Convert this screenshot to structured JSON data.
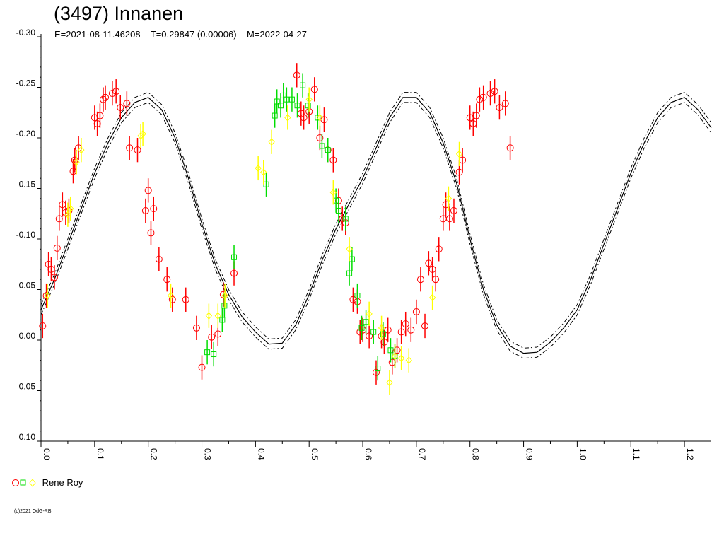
{
  "title": "(3497) Innanen",
  "subtitle": "E=2021-08-11.46208    T=0.29847 (0.00006)    M=2022-04-27",
  "copyright": "(c)2021 OdG-RB",
  "legend": {
    "label": "Rene Roy",
    "colors": [
      "#ff0000",
      "#00dd00",
      "#ffff00"
    ]
  },
  "chart_data": {
    "type": "scatter",
    "title": "(3497) Innanen",
    "xlabel": "",
    "ylabel": "",
    "xlim": [
      0.0,
      1.25
    ],
    "ylim": [
      -0.3,
      0.1
    ],
    "y_inverted": true,
    "x_ticks": [
      "0.0",
      "0.1",
      "0.2",
      "0.3",
      "0.4",
      "0.5",
      "0.6",
      "0.7",
      "0.8",
      "0.9",
      "1.0",
      "1.1",
      "1.2"
    ],
    "y_ticks": [
      "-0.30",
      "-0.25",
      "-0.20",
      "-0.15",
      "-0.10",
      "-0.05",
      "0.00",
      "0.05",
      "0.10"
    ],
    "fit_curve": {
      "x": [
        0.0,
        0.025,
        0.05,
        0.075,
        0.1,
        0.125,
        0.15,
        0.175,
        0.2,
        0.225,
        0.25,
        0.275,
        0.3,
        0.325,
        0.35,
        0.375,
        0.4,
        0.425,
        0.45,
        0.475,
        0.5,
        0.525,
        0.55,
        0.575,
        0.6,
        0.625,
        0.65,
        0.675,
        0.7,
        0.725,
        0.75,
        0.775,
        0.8,
        0.825,
        0.85,
        0.875,
        0.9,
        0.925,
        0.95,
        0.975,
        1.0,
        1.025,
        1.05,
        1.075,
        1.1,
        1.125,
        1.15,
        1.175,
        1.2,
        1.225,
        1.25
      ],
      "y": [
        -0.03,
        -0.06,
        -0.095,
        -0.13,
        -0.165,
        -0.195,
        -0.22,
        -0.235,
        -0.24,
        -0.228,
        -0.2,
        -0.16,
        -0.115,
        -0.075,
        -0.045,
        -0.023,
        -0.008,
        0.004,
        0.003,
        -0.015,
        -0.045,
        -0.08,
        -0.11,
        -0.135,
        -0.16,
        -0.19,
        -0.22,
        -0.24,
        -0.24,
        -0.225,
        -0.195,
        -0.155,
        -0.1,
        -0.05,
        -0.015,
        0.006,
        0.013,
        0.012,
        0.002,
        -0.012,
        -0.03,
        -0.06,
        -0.095,
        -0.13,
        -0.165,
        -0.195,
        -0.22,
        -0.235,
        -0.24,
        -0.228,
        -0.21
      ],
      "band": 0.005
    },
    "series": [
      {
        "marker": "circle",
        "color": "#ff0000",
        "points": [
          [
            0.003,
            -0.014
          ],
          [
            0.01,
            -0.044
          ],
          [
            0.014,
            -0.075
          ],
          [
            0.019,
            -0.07
          ],
          [
            0.025,
            -0.062
          ],
          [
            0.03,
            -0.091
          ],
          [
            0.034,
            -0.12
          ],
          [
            0.04,
            -0.134
          ],
          [
            0.046,
            -0.126
          ],
          [
            0.052,
            -0.128
          ],
          [
            0.06,
            -0.167
          ],
          [
            0.063,
            -0.178
          ],
          [
            0.07,
            -0.19
          ],
          [
            0.1,
            -0.22
          ],
          [
            0.105,
            -0.214
          ],
          [
            0.11,
            -0.222
          ],
          [
            0.116,
            -0.238
          ],
          [
            0.12,
            -0.24
          ],
          [
            0.133,
            -0.244
          ],
          [
            0.14,
            -0.246
          ],
          [
            0.148,
            -0.23
          ],
          [
            0.16,
            -0.234
          ],
          [
            0.165,
            -0.19
          ],
          [
            0.18,
            -0.188
          ],
          [
            0.195,
            -0.128
          ],
          [
            0.2,
            -0.148
          ],
          [
            0.205,
            -0.106
          ],
          [
            0.21,
            -0.13
          ],
          [
            0.22,
            -0.08
          ],
          [
            0.235,
            -0.06
          ],
          [
            0.245,
            -0.04
          ],
          [
            0.27,
            -0.04
          ],
          [
            0.29,
            -0.012
          ],
          [
            0.3,
            0.027
          ],
          [
            0.318,
            -0.003
          ],
          [
            0.33,
            -0.006
          ],
          [
            0.34,
            -0.045
          ],
          [
            0.36,
            -0.066
          ],
          [
            0.477,
            -0.262
          ],
          [
            0.485,
            -0.224
          ],
          [
            0.49,
            -0.22
          ],
          [
            0.5,
            -0.226
          ],
          [
            0.51,
            -0.248
          ],
          [
            0.52,
            -0.2
          ],
          [
            0.528,
            -0.218
          ],
          [
            0.535,
            -0.188
          ],
          [
            0.545,
            -0.178
          ],
          [
            0.555,
            -0.138
          ],
          [
            0.562,
            -0.12
          ],
          [
            0.568,
            -0.116
          ],
          [
            0.582,
            -0.04
          ],
          [
            0.59,
            -0.038
          ],
          [
            0.595,
            -0.008
          ],
          [
            0.6,
            -0.01
          ],
          [
            0.612,
            -0.004
          ],
          [
            0.625,
            0.032
          ],
          [
            0.635,
            -0.004
          ],
          [
            0.64,
            0.002
          ],
          [
            0.647,
            -0.01
          ],
          [
            0.655,
            0.022
          ],
          [
            0.664,
            0.01
          ],
          [
            0.672,
            -0.008
          ],
          [
            0.68,
            -0.016
          ],
          [
            0.69,
            -0.01
          ],
          [
            0.7,
            -0.028
          ],
          [
            0.708,
            -0.06
          ],
          [
            0.716,
            -0.014
          ],
          [
            0.723,
            -0.076
          ],
          [
            0.73,
            -0.07
          ],
          [
            0.736,
            -0.06
          ],
          [
            0.742,
            -0.09
          ],
          [
            0.75,
            -0.12
          ],
          [
            0.755,
            -0.134
          ],
          [
            0.762,
            -0.12
          ],
          [
            0.77,
            -0.128
          ],
          [
            0.78,
            -0.166
          ],
          [
            0.786,
            -0.178
          ],
          [
            0.8,
            -0.22
          ],
          [
            0.806,
            -0.214
          ],
          [
            0.812,
            -0.222
          ],
          [
            0.818,
            -0.238
          ],
          [
            0.825,
            -0.24
          ],
          [
            0.838,
            -0.244
          ],
          [
            0.846,
            -0.246
          ],
          [
            0.855,
            -0.23
          ],
          [
            0.866,
            -0.234
          ],
          [
            0.875,
            -0.19
          ]
        ]
      },
      {
        "marker": "square",
        "color": "#00dd00",
        "points": [
          [
            0.31,
            0.012
          ],
          [
            0.322,
            0.014
          ],
          [
            0.338,
            -0.02
          ],
          [
            0.342,
            -0.034
          ],
          [
            0.36,
            -0.082
          ],
          [
            0.42,
            -0.154
          ],
          [
            0.436,
            -0.222
          ],
          [
            0.44,
            -0.236
          ],
          [
            0.447,
            -0.232
          ],
          [
            0.452,
            -0.242
          ],
          [
            0.458,
            -0.238
          ],
          [
            0.468,
            -0.238
          ],
          [
            0.478,
            -0.232
          ],
          [
            0.488,
            -0.252
          ],
          [
            0.498,
            -0.232
          ],
          [
            0.516,
            -0.22
          ],
          [
            0.524,
            -0.192
          ],
          [
            0.535,
            -0.188
          ],
          [
            0.55,
            -0.138
          ],
          [
            0.555,
            -0.128
          ],
          [
            0.568,
            -0.12
          ],
          [
            0.575,
            -0.066
          ],
          [
            0.58,
            -0.08
          ],
          [
            0.59,
            -0.044
          ],
          [
            0.598,
            -0.012
          ],
          [
            0.606,
            -0.018
          ],
          [
            0.62,
            -0.008
          ],
          [
            0.628,
            0.028
          ],
          [
            0.638,
            -0.006
          ],
          [
            0.652,
            0.01
          ],
          [
            0.66,
            0.016
          ]
        ]
      },
      {
        "marker": "diamond",
        "color": "#ffff00",
        "points": [
          [
            0.012,
            -0.044
          ],
          [
            0.05,
            -0.124
          ],
          [
            0.055,
            -0.13
          ],
          [
            0.066,
            -0.176
          ],
          [
            0.075,
            -0.188
          ],
          [
            0.186,
            -0.202
          ],
          [
            0.19,
            -0.204
          ],
          [
            0.242,
            -0.044
          ],
          [
            0.313,
            -0.024
          ],
          [
            0.33,
            -0.024
          ],
          [
            0.343,
            -0.044
          ],
          [
            0.405,
            -0.17
          ],
          [
            0.415,
            -0.166
          ],
          [
            0.43,
            -0.196
          ],
          [
            0.46,
            -0.22
          ],
          [
            0.5,
            -0.238
          ],
          [
            0.52,
            -0.22
          ],
          [
            0.545,
            -0.146
          ],
          [
            0.575,
            -0.09
          ],
          [
            0.612,
            -0.026
          ],
          [
            0.635,
            -0.012
          ],
          [
            0.65,
            0.042
          ],
          [
            0.66,
            0.016
          ],
          [
            0.672,
            0.018
          ],
          [
            0.686,
            0.02
          ],
          [
            0.73,
            -0.042
          ],
          [
            0.76,
            -0.14
          ],
          [
            0.78,
            -0.184
          ]
        ]
      }
    ]
  }
}
